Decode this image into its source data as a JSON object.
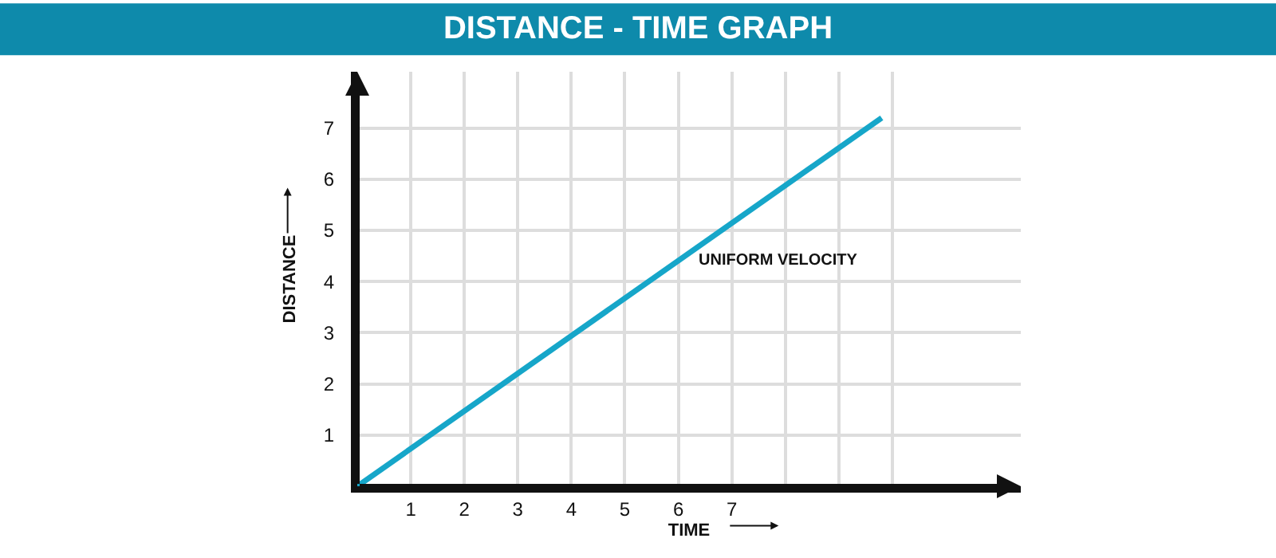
{
  "chart_data": {
    "type": "line",
    "title": "DISTANCE - TIME GRAPH",
    "xlabel": "TIME",
    "ylabel": "DISTANCE",
    "x": [
      0,
      9.8
    ],
    "series": [
      {
        "color": "#16a6c9",
        "values": [
          0,
          7.2
        ]
      }
    ],
    "xlim": [
      0,
      12.4
    ],
    "ylim": [
      0,
      8.1
    ],
    "xticks": [
      1,
      2,
      3,
      4,
      5,
      6,
      7,
      {
        "value": 8,
        "label": null
      },
      {
        "value": 9,
        "label": null
      },
      {
        "value": 10,
        "label": null
      }
    ],
    "yticks": [
      1,
      2,
      3,
      4,
      5,
      6,
      7
    ],
    "grid": true,
    "annotations": [
      "UNIFORM VELOCITY"
    ]
  }
}
